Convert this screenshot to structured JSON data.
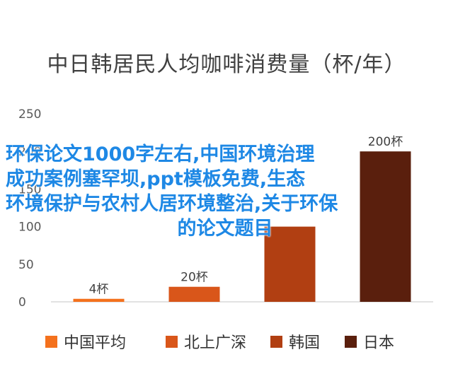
{
  "chart_data": {
    "type": "bar",
    "title": "中日韩居民人均咖啡消费量（杯/年）",
    "categories": [
      "中国平均",
      "北上广深",
      "韩国",
      "日本"
    ],
    "values": [
      4,
      20,
      100,
      200
    ],
    "data_labels": [
      "4杯",
      "20杯",
      "",
      "200杯"
    ],
    "colors": [
      "#f4711d",
      "#d9561a",
      "#b13f12",
      "#5a1f0d"
    ],
    "ylim": [
      0,
      250
    ],
    "yticks": [
      "0",
      "50",
      "100",
      "150",
      "200",
      "250"
    ],
    "xlabel": "",
    "ylabel": "",
    "grid": false,
    "legend_position": "bottom"
  },
  "overlay": {
    "lines": [
      "环保论文1000字左右,中国环境治理",
      "成功案例塞罕坝,ppt模板免费,生态",
      "环境保护与农村人居环境整治,关于环保",
      "的论文题目"
    ],
    "color": "#1e88e5"
  }
}
